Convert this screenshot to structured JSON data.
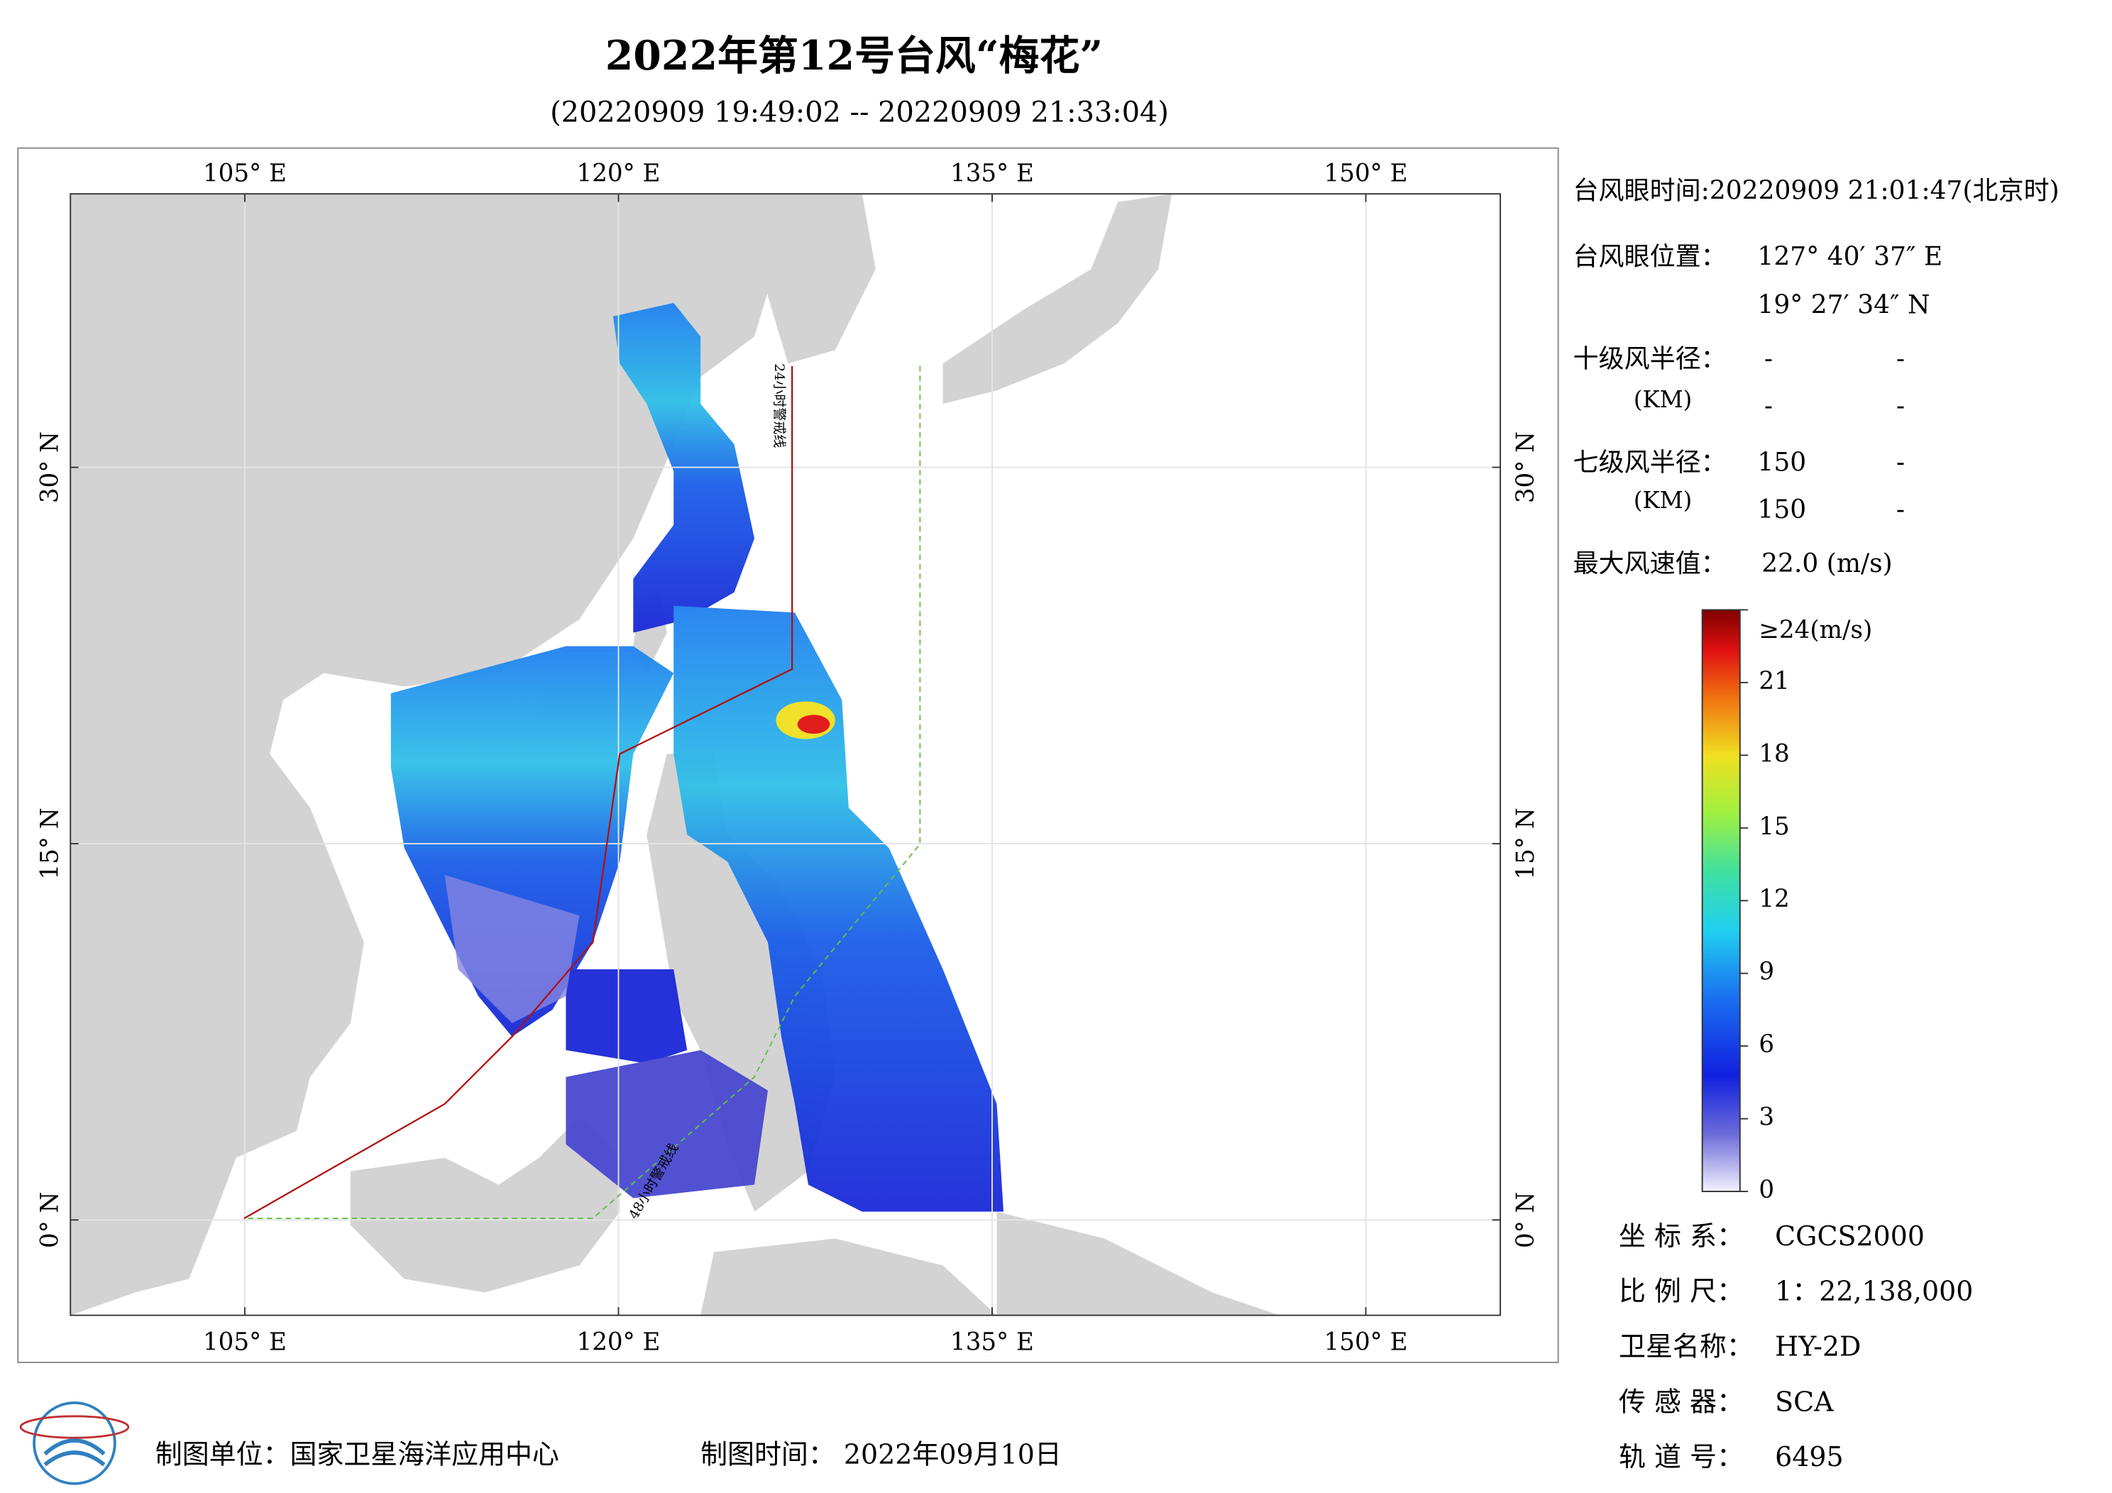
{
  "header": {
    "title": "2022年第12号台风“梅花”",
    "subtitle": "(20220909 19:49:02 -- 20220909 21:33:04)"
  },
  "map": {
    "lon_range": [
      98,
      155.4
    ],
    "lat_range": [
      -3.8,
      40.9
    ],
    "lon_ticks": [
      {
        "value": 105,
        "label": "105° E"
      },
      {
        "value": 120,
        "label": "120° E"
      },
      {
        "value": 135,
        "label": "135° E"
      },
      {
        "value": 150,
        "label": "150° E"
      }
    ],
    "lat_ticks": [
      {
        "value": 0,
        "label": "0° N"
      },
      {
        "value": 15,
        "label": "15° N"
      },
      {
        "value": 30,
        "label": "30° N"
      }
    ],
    "annotations": [
      "24小时警戒线",
      "48小时警戒线"
    ]
  },
  "info": {
    "eye_time": "台风眼时间:20220909 21:01:47(北京时)",
    "eye_pos_label": "台风眼位置：",
    "eye_lon": "127° 40′ 37″ E",
    "eye_lat": "19° 27′ 34″ N",
    "r10_label": "十级风半径：",
    "r10_unit": "(KM)",
    "r10": [
      "-",
      "-",
      "-",
      "-"
    ],
    "r7_label": "七级风半径：",
    "r7_unit": "(KM)",
    "r7": [
      "150",
      "-",
      "150",
      "-"
    ],
    "max_label": "最大风速值：",
    "max_value": "22.0  (m/s)"
  },
  "colorbar": {
    "range": [
      0,
      24
    ],
    "ticks": [
      0,
      3,
      6,
      9,
      12,
      15,
      18,
      21,
      {
        "value": 24,
        "label": "≥24(m/s)"
      }
    ]
  },
  "meta": [
    [
      "坐 标 系：",
      "CGCS2000"
    ],
    [
      "比 例 尺：",
      "1：22,138,000"
    ],
    [
      "卫星名称：",
      "HY-2D"
    ],
    [
      "传 感 器：",
      "SCA"
    ],
    [
      "轨 道 号：",
      "6495"
    ]
  ],
  "footer": {
    "unit": "制图单位：国家卫星海洋应用中心",
    "time": "制图时间： 2022年09月10日"
  }
}
